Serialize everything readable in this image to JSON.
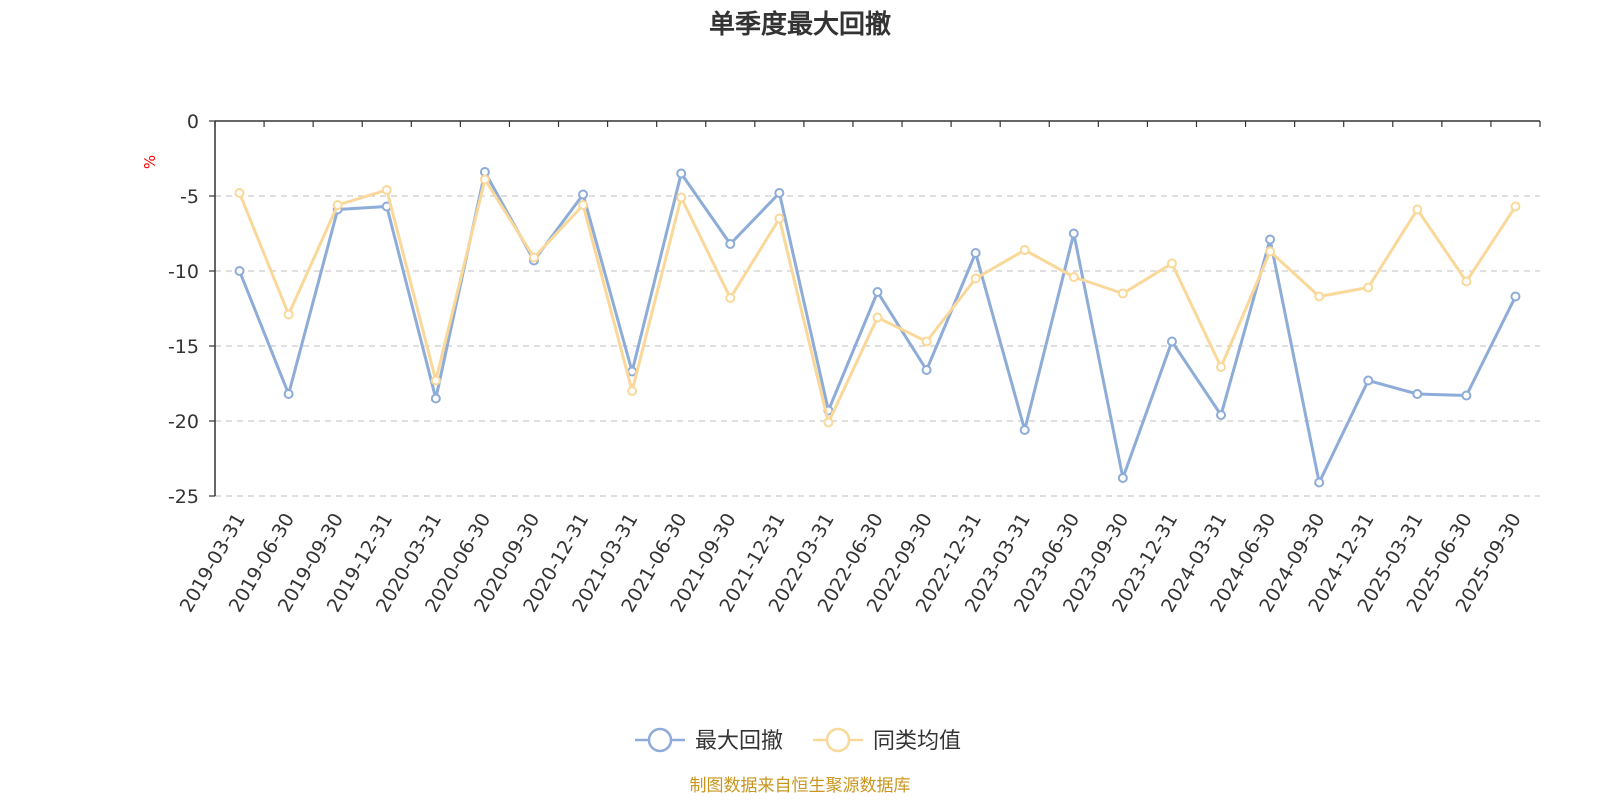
{
  "chart_data": {
    "type": "line",
    "title": "单季度最大回撤",
    "ylabel": "%",
    "ylim": [
      -25,
      0
    ],
    "yticks": [
      0,
      -5,
      -10,
      -15,
      -20,
      -25
    ],
    "grid": true,
    "legend_position": "bottom-center",
    "categories": [
      "2019-03-31",
      "2019-06-30",
      "2019-09-30",
      "2019-12-31",
      "2020-03-31",
      "2020-06-30",
      "2020-09-30",
      "2020-12-31",
      "2021-03-31",
      "2021-06-30",
      "2021-09-30",
      "2021-12-31",
      "2022-03-31",
      "2022-06-30",
      "2022-09-30",
      "2022-12-31",
      "2023-03-31",
      "2023-06-30",
      "2023-09-30",
      "2023-12-31",
      "2024-03-31",
      "2024-06-30",
      "2024-09-30",
      "2024-12-31",
      "2025-03-31",
      "2025-06-30",
      "2025-09-30"
    ],
    "series": [
      {
        "name": "最大回撤",
        "color": "#8eacd8",
        "values": [
          -10.0,
          -18.2,
          -5.9,
          -5.7,
          -18.5,
          -3.4,
          -9.3,
          -4.9,
          -16.7,
          -3.5,
          -8.2,
          -4.8,
          -19.3,
          -11.4,
          -16.6,
          -8.8,
          -20.6,
          -7.5,
          -23.8,
          -14.7,
          -19.6,
          -7.9,
          -24.1,
          -17.3,
          -18.2,
          -18.3,
          -11.7
        ]
      },
      {
        "name": "同类均值",
        "color": "#fad89a",
        "values": [
          -4.8,
          -12.9,
          -5.6,
          -4.6,
          -17.3,
          -3.9,
          -9.1,
          -5.6,
          -18.0,
          -5.1,
          -11.8,
          -6.5,
          -20.1,
          -13.1,
          -14.7,
          -10.5,
          -8.6,
          -10.4,
          -11.5,
          -9.5,
          -16.4,
          -8.7,
          -11.7,
          -11.1,
          -5.9,
          -10.7,
          -5.7
        ]
      }
    ]
  },
  "source_text": "制图数据来自恒生聚源数据库"
}
